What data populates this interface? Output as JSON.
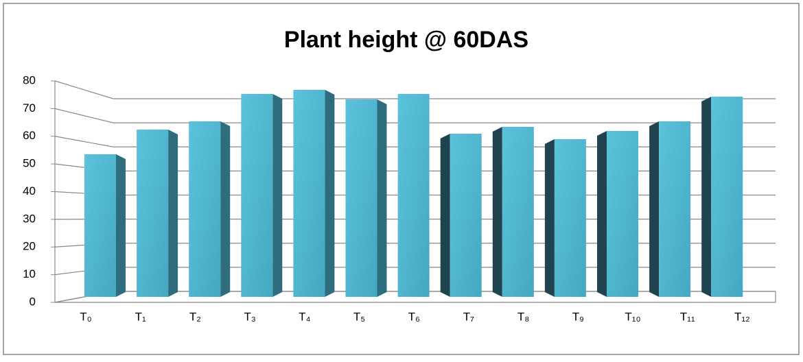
{
  "chart_data": {
    "type": "bar3d",
    "title": "Plant height @ 60DAS",
    "categories": [
      "T₀",
      "T₁",
      "T₂",
      "T₃",
      "T₄",
      "T₅",
      "T₆",
      "T₇",
      "T₈",
      "T₉",
      "T₁₀",
      "T₁₁",
      "T₁₂"
    ],
    "values": [
      52,
      61,
      64,
      74,
      75.5,
      72,
      74,
      59.5,
      62,
      57.5,
      60.5,
      64,
      73
    ],
    "color": "#4bacc6",
    "ylim": [
      0,
      80
    ],
    "yticks": [
      0,
      10,
      20,
      30,
      40,
      50,
      60,
      70,
      80
    ],
    "grid": true
  }
}
